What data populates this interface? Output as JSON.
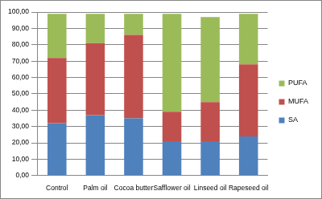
{
  "chart_data": {
    "type": "bar",
    "stacked": true,
    "grid": true,
    "legend": "right",
    "categories": [
      "Control",
      "Palm oil",
      "Cocoa butter",
      "Safflower oil",
      "Linseed oil",
      "Rapeseed oil"
    ],
    "series": [
      {
        "name": "SA",
        "color": "#4f81bd",
        "values": [
          32,
          37,
          35,
          21,
          21,
          24
        ]
      },
      {
        "name": "MUFA",
        "color": "#c0504d",
        "values": [
          40,
          44,
          51,
          18,
          24,
          44
        ]
      },
      {
        "name": "PUFA",
        "color": "#9bbb59",
        "values": [
          27,
          18,
          13,
          60,
          52,
          31
        ]
      }
    ],
    "ylim": [
      0,
      100
    ],
    "yticks": [
      {
        "value": 0,
        "label": "0,00"
      },
      {
        "value": 10,
        "label": "10,00"
      },
      {
        "value": 20,
        "label": "20,00"
      },
      {
        "value": 30,
        "label": "30,00"
      },
      {
        "value": 40,
        "label": "40,00"
      },
      {
        "value": 50,
        "label": "50,00"
      },
      {
        "value": 60,
        "label": "60,00"
      },
      {
        "value": 70,
        "label": "70,00"
      },
      {
        "value": 80,
        "label": "80,00"
      },
      {
        "value": 90,
        "label": "90,00"
      },
      {
        "value": 100,
        "label": "100,00"
      }
    ]
  }
}
